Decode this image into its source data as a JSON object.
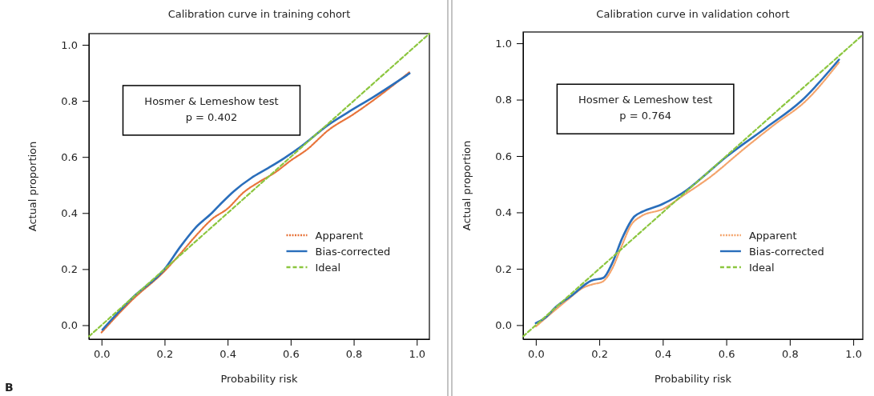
{
  "chart_data": [
    {
      "type": "line",
      "title": "Calibration curve in training cohort",
      "xlabel": "Probability risk",
      "ylabel": "Actual proportion",
      "xlim": [
        -0.04,
        1.04
      ],
      "ylim": [
        -0.05,
        1.04
      ],
      "xticks": [
        {
          "value": 0,
          "label": "0.0"
        },
        {
          "value": 0.2,
          "label": "0.2"
        },
        {
          "value": 0.4,
          "label": "0.4"
        },
        {
          "value": 0.6,
          "label": "0.6"
        },
        {
          "value": 0.8,
          "label": "0.8"
        },
        {
          "value": 1,
          "label": "1.0"
        }
      ],
      "yticks": [
        {
          "value": 0,
          "label": "0.0"
        },
        {
          "value": 0.2,
          "label": "0.2"
        },
        {
          "value": 0.4,
          "label": "0.4"
        },
        {
          "value": 0.6,
          "label": "0.6"
        },
        {
          "value": 0.8,
          "label": "0.8"
        },
        {
          "value": 1,
          "label": "1.0"
        }
      ],
      "legend": "bottom right",
      "grid": false,
      "annotations": [
        "Hosmer & Lemeshow test",
        "p = 0.402",
        "B"
      ],
      "series": [
        {
          "name": "Apparent",
          "color": "#e8743b",
          "line_style": "dotted",
          "x": [
            0,
            0.1,
            0.2,
            0.25,
            0.3,
            0.35,
            0.4,
            0.45,
            0.5,
            0.55,
            0.6,
            0.65,
            0.72,
            0.8,
            0.9,
            0.977
          ],
          "values": [
            -0.026,
            0.093,
            0.193,
            0.255,
            0.32,
            0.378,
            0.416,
            0.473,
            0.511,
            0.544,
            0.587,
            0.625,
            0.696,
            0.753,
            0.834,
            0.903
          ]
        },
        {
          "name": "Bias-corrected",
          "color": "#2a6ebb",
          "line_style": "solid",
          "x": [
            0.003,
            0.1,
            0.2,
            0.25,
            0.3,
            0.35,
            0.38,
            0.42,
            0.475,
            0.525,
            0.58,
            0.635,
            0.72,
            0.78,
            0.864,
            0.977
          ],
          "values": [
            -0.016,
            0.1,
            0.2,
            0.28,
            0.35,
            0.4,
            0.435,
            0.478,
            0.525,
            0.558,
            0.596,
            0.639,
            0.715,
            0.758,
            0.815,
            0.898
          ]
        },
        {
          "name": "Ideal",
          "color": "#8cc63f",
          "line_style": "dashed",
          "x": [
            -0.04,
            1.04
          ],
          "values": [
            -0.04,
            1.04
          ]
        }
      ]
    },
    {
      "type": "line",
      "title": "Calibration curve in validation cohort",
      "xlabel": "Probability risk",
      "ylabel": "Actual proportion",
      "xlim": [
        -0.04,
        1.03
      ],
      "ylim": [
        -0.05,
        1.04
      ],
      "xticks": [
        {
          "value": 0,
          "label": "0.0"
        },
        {
          "value": 0.2,
          "label": "0.2"
        },
        {
          "value": 0.4,
          "label": "0.4"
        },
        {
          "value": 0.6,
          "label": "0.6"
        },
        {
          "value": 0.8,
          "label": "0.8"
        },
        {
          "value": 1,
          "label": "1.0"
        }
      ],
      "yticks": [
        {
          "value": 0,
          "label": "0.0"
        },
        {
          "value": 0.2,
          "label": "0.2"
        },
        {
          "value": 0.4,
          "label": "0.4"
        },
        {
          "value": 0.6,
          "label": "0.6"
        },
        {
          "value": 0.8,
          "label": "0.8"
        },
        {
          "value": 1,
          "label": "1.0"
        }
      ],
      "legend": "bottom right",
      "grid": false,
      "annotations": [
        "Hosmer & Lemeshow test",
        "p = 0.764"
      ],
      "series": [
        {
          "name": "Apparent",
          "color": "#f4a46c",
          "line_style": "dotted",
          "x": [
            0,
            0.05,
            0.1,
            0.15,
            0.18,
            0.21,
            0.24,
            0.27,
            0.3,
            0.33,
            0.4,
            0.47,
            0.55,
            0.65,
            0.75,
            0.85,
            0.955
          ],
          "values": [
            -0.005,
            0.043,
            0.09,
            0.133,
            0.145,
            0.154,
            0.199,
            0.279,
            0.355,
            0.385,
            0.412,
            0.464,
            0.526,
            0.62,
            0.71,
            0.795,
            0.932
          ]
        },
        {
          "name": "Bias-corrected",
          "color": "#2a6ebb",
          "line_style": "solid",
          "x": [
            0,
            0.032,
            0.061,
            0.112,
            0.175,
            0.213,
            0.242,
            0.272,
            0.31,
            0.335,
            0.398,
            0.474,
            0.516,
            0.6,
            0.726,
            0.836,
            0.955
          ],
          "values": [
            0.007,
            0.028,
            0.062,
            0.104,
            0.158,
            0.168,
            0.223,
            0.308,
            0.385,
            0.402,
            0.429,
            0.478,
            0.516,
            0.597,
            0.701,
            0.795,
            0.942
          ]
        },
        {
          "name": "Ideal",
          "color": "#8cc63f",
          "line_style": "dashed",
          "x": [
            -0.04,
            1.03
          ],
          "values": [
            -0.04,
            1.03
          ]
        }
      ]
    }
  ]
}
